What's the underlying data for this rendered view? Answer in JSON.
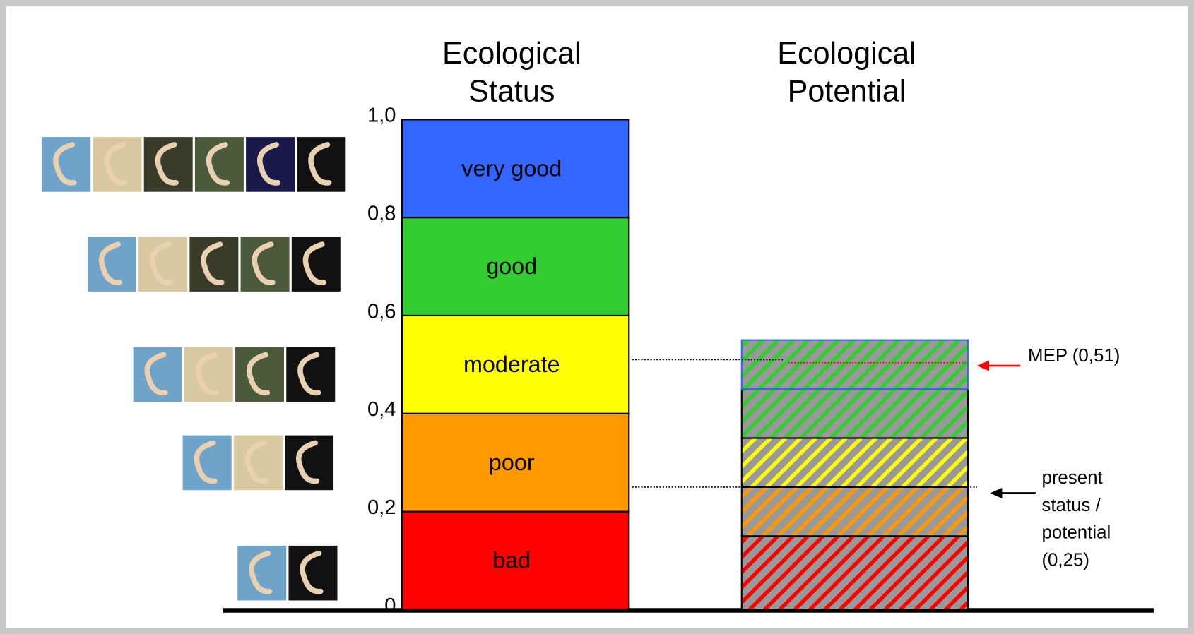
{
  "chart_data": {
    "type": "class-bars",
    "status_title": [
      "Ecological",
      "Status"
    ],
    "potential_title": [
      "Ecological",
      "Potential"
    ],
    "ylim": [
      0,
      1
    ],
    "yticks": [
      0,
      {
        "value": 0.2,
        "label": "0,2"
      },
      {
        "value": 0.4,
        "label": "0,4"
      },
      {
        "value": 0.6,
        "label": "0,6"
      },
      {
        "value": 0.8,
        "label": "0,8"
      },
      {
        "value": 1,
        "label": "1,0"
      }
    ],
    "status": {
      "categories": [
        "bad",
        "poor",
        "moderate",
        "good",
        "very good"
      ],
      "values": [
        0.2,
        0.2,
        0.2,
        0.2,
        0.2
      ],
      "colors": [
        "#ff0000",
        "#ff9900",
        "#ffff00",
        "#33cc33",
        "#3366ff"
      ]
    },
    "potential": {
      "values": [
        0.15,
        0.1,
        0.1,
        0.1,
        0.1
      ],
      "colors": [
        "#ff0000",
        "#ff9900",
        "#ffff00",
        "#33cc33",
        "#33cc33"
      ],
      "hatch_background": "#999999",
      "top_border": "#3366ff"
    },
    "annotations": [
      {
        "lines": [
          "MEP (0,51)"
        ],
        "value": 0.51,
        "color": "#ff0000"
      },
      {
        "lines": [
          "present",
          "status /",
          "potential",
          "(0,25)"
        ],
        "value": 0.25,
        "color": "#000000"
      }
    ]
  }
}
